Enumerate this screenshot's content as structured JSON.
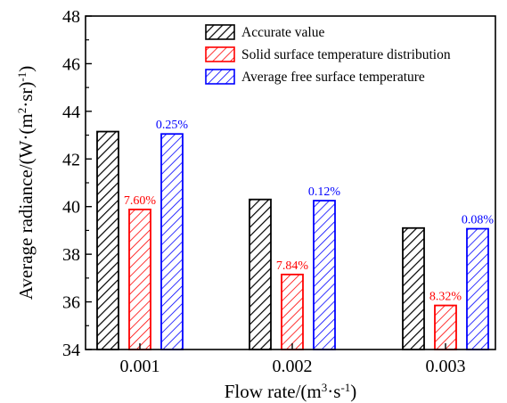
{
  "chart_data": {
    "type": "bar",
    "categories": [
      "0.001",
      "0.002",
      "0.003"
    ],
    "series": [
      {
        "name": "Accurate value",
        "values": [
          43.15,
          40.3,
          39.1
        ],
        "color": "#000000",
        "labels": [
          "",
          "",
          ""
        ]
      },
      {
        "name": "Solid surface temperature distribution",
        "values": [
          39.88,
          37.15,
          35.85
        ],
        "color": "#ff0000",
        "labels": [
          "7.60%",
          "7.84%",
          "8.32%"
        ]
      },
      {
        "name": "Average free surface temperature",
        "values": [
          43.05,
          40.25,
          39.07
        ],
        "color": "#0000ff",
        "labels": [
          "0.25%",
          "0.12%",
          "0.08%"
        ]
      }
    ],
    "ylim": [
      34,
      48
    ],
    "yticks": [
      "34",
      "36",
      "38",
      "40",
      "42",
      "44",
      "46",
      "48"
    ],
    "ytick_values": [
      34,
      36,
      38,
      40,
      42,
      44,
      46,
      48
    ],
    "ylabel_main": "Average radiance/(W·(m",
    "ylabel_sup1": "2",
    "ylabel_mid": "·sr)",
    "ylabel_sup2": "-1",
    "ylabel_end": ")",
    "xlabel_main": "Flow rate/(m",
    "xlabel_sup1": "3",
    "xlabel_mid": "·s",
    "xlabel_sup2": "-1",
    "xlabel_end": ")",
    "legend_position": "top-right",
    "grid": false
  }
}
